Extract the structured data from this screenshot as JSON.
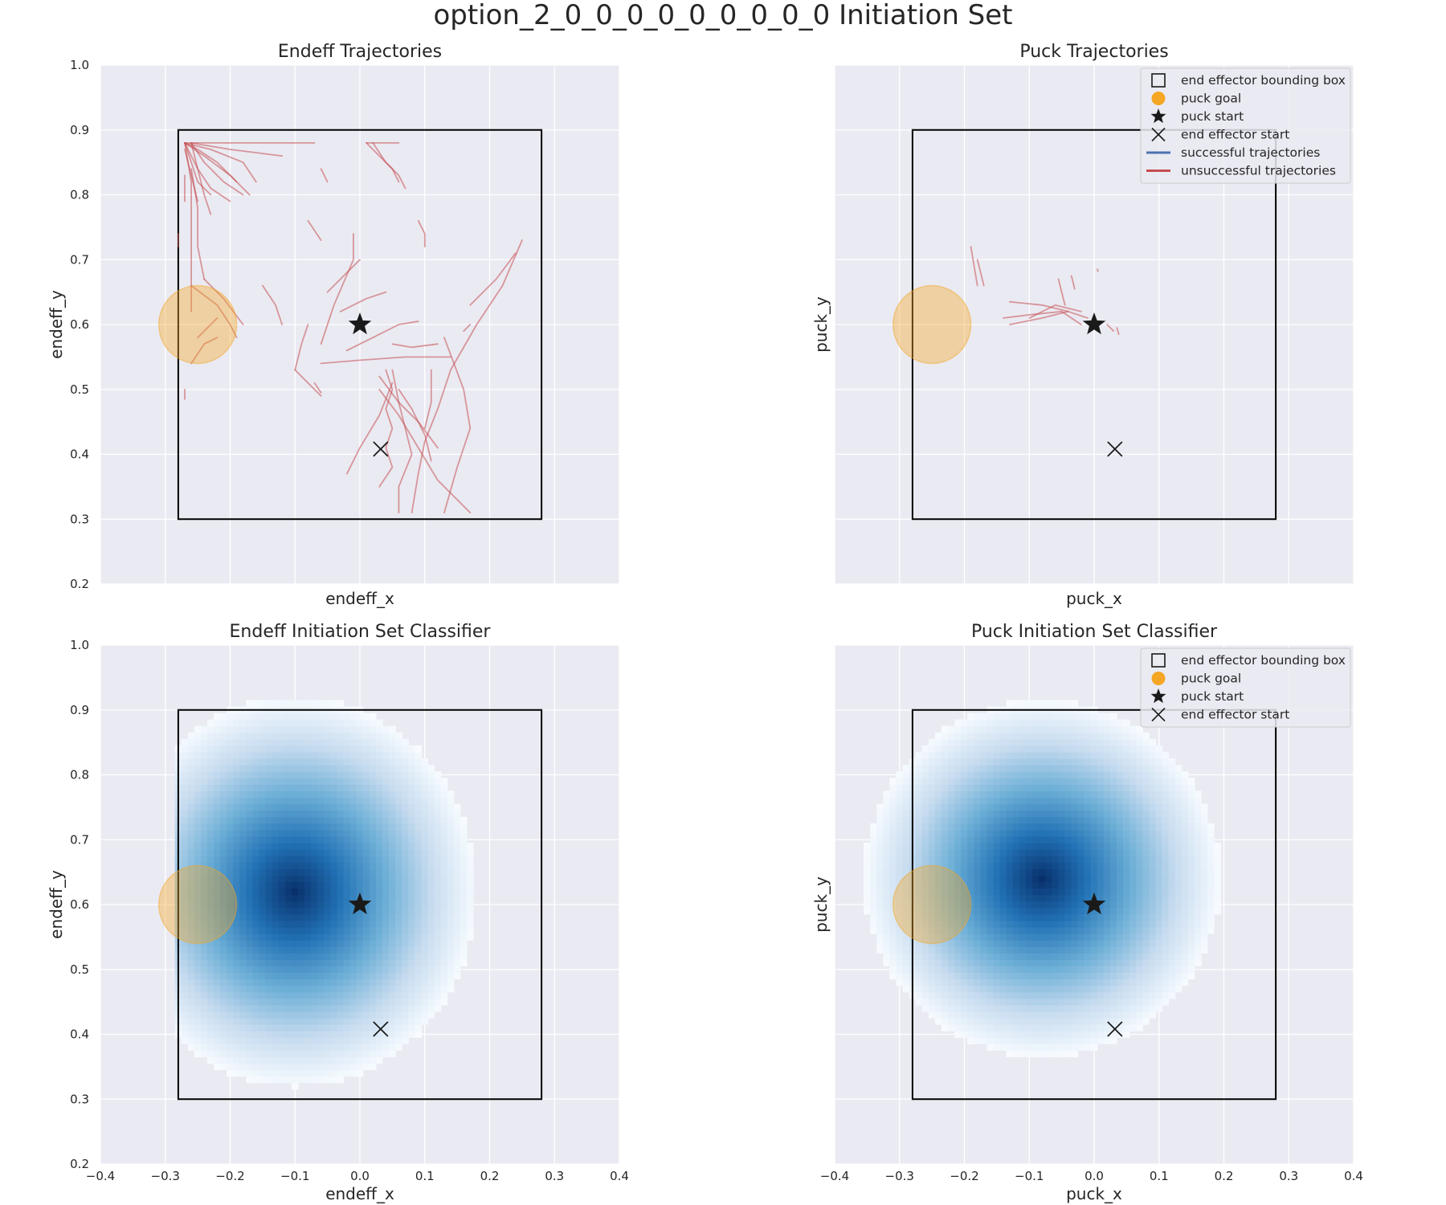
{
  "figure": {
    "title": "option_2_0_0_0_0_0_0_0_0_0 Initiation Set"
  },
  "colors": {
    "axes_bg": "#eaeaf2",
    "grid": "#ffffff",
    "bounding_box": "#000000",
    "puck_goal": "#f5a623",
    "successful": "#4c72b0",
    "unsuccessful": "#c44e52",
    "classifier_cmap": [
      "#f7fbff",
      "#c6dbef",
      "#6baed6",
      "#2171b5",
      "#08306b"
    ]
  },
  "legend_full": [
    {
      "marker": "square-icon",
      "label": "end effector bounding box"
    },
    {
      "marker": "circle-icon",
      "label": "puck goal"
    },
    {
      "marker": "star-icon",
      "label": "puck start"
    },
    {
      "marker": "x-icon",
      "label": "end effector start"
    },
    {
      "marker": "blue-line-icon",
      "label": "successful trajectories"
    },
    {
      "marker": "red-line-icon",
      "label": "unsuccessful trajectories"
    }
  ],
  "legend_short": [
    {
      "marker": "square-icon",
      "label": "end effector bounding box"
    },
    {
      "marker": "circle-icon",
      "label": "puck goal"
    },
    {
      "marker": "star-icon",
      "label": "puck start"
    },
    {
      "marker": "x-icon",
      "label": "end effector start"
    }
  ],
  "chart_data": [
    {
      "type": "line",
      "title": "Endeff Trajectories",
      "xlabel": "endeff_x",
      "ylabel": "endeff_y",
      "xlim": [
        -0.4,
        0.4
      ],
      "ylim": [
        0.2,
        1.0
      ],
      "xticks": [],
      "yticks": [
        "1.0",
        "0.9",
        "0.8",
        "0.7",
        "0.6",
        "0.5",
        "0.4",
        "0.3",
        "0.2"
      ],
      "grid": true,
      "legend": "none",
      "bounding_box": {
        "x": [
          -0.28,
          0.28
        ],
        "y": [
          0.3,
          0.9
        ]
      },
      "puck_goal": {
        "x": -0.25,
        "y": 0.6,
        "radius": 0.06
      },
      "puck_start": {
        "x": 0.0,
        "y": 0.6
      },
      "end_effector_start": {
        "x": 0.032,
        "y": 0.408
      },
      "successful_trajectories": [],
      "unsuccessful_trajectories": [
        [
          [
            -0.27,
            0.88
          ],
          [
            -0.25,
            0.84
          ],
          [
            -0.23,
            0.81
          ],
          [
            -0.2,
            0.79
          ]
        ],
        [
          [
            -0.27,
            0.88
          ],
          [
            -0.24,
            0.86
          ],
          [
            -0.2,
            0.83
          ],
          [
            -0.17,
            0.8
          ]
        ],
        [
          [
            -0.27,
            0.88
          ],
          [
            -0.26,
            0.85
          ],
          [
            -0.25,
            0.82
          ],
          [
            -0.23,
            0.8
          ]
        ],
        [
          [
            -0.27,
            0.88
          ],
          [
            -0.25,
            0.87
          ],
          [
            -0.22,
            0.85
          ],
          [
            -0.19,
            0.82
          ]
        ],
        [
          [
            -0.26,
            0.88
          ],
          [
            -0.24,
            0.85
          ],
          [
            -0.21,
            0.82
          ],
          [
            -0.18,
            0.8
          ]
        ],
        [
          [
            -0.26,
            0.88
          ],
          [
            -0.25,
            0.84
          ],
          [
            -0.24,
            0.8
          ],
          [
            -0.23,
            0.77
          ]
        ],
        [
          [
            -0.27,
            0.87
          ],
          [
            -0.26,
            0.83
          ],
          [
            -0.25,
            0.79
          ]
        ],
        [
          [
            -0.27,
            0.88
          ],
          [
            -0.23,
            0.87
          ],
          [
            -0.18,
            0.85
          ],
          [
            -0.16,
            0.82
          ]
        ],
        [
          [
            -0.27,
            0.88
          ],
          [
            -0.2,
            0.88
          ],
          [
            -0.1,
            0.88
          ],
          [
            -0.07,
            0.88
          ]
        ],
        [
          [
            -0.26,
            0.88
          ],
          [
            -0.2,
            0.87
          ],
          [
            -0.12,
            0.86
          ]
        ],
        [
          [
            -0.27,
            0.88
          ],
          [
            -0.26,
            0.82
          ],
          [
            -0.26,
            0.75
          ],
          [
            -0.26,
            0.68
          ],
          [
            -0.26,
            0.62
          ]
        ],
        [
          [
            -0.26,
            0.84
          ],
          [
            -0.25,
            0.78
          ],
          [
            -0.25,
            0.72
          ],
          [
            -0.24,
            0.67
          ]
        ],
        [
          [
            -0.27,
            0.83
          ],
          [
            -0.27,
            0.79
          ]
        ],
        [
          [
            -0.28,
            0.74
          ],
          [
            -0.28,
            0.72
          ]
        ],
        [
          [
            -0.26,
            0.66
          ],
          [
            -0.22,
            0.63
          ],
          [
            -0.2,
            0.6
          ],
          [
            -0.19,
            0.58
          ]
        ],
        [
          [
            -0.25,
            0.58
          ],
          [
            -0.24,
            0.59
          ],
          [
            -0.22,
            0.61
          ]
        ],
        [
          [
            -0.27,
            0.5
          ],
          [
            -0.27,
            0.485
          ]
        ],
        [
          [
            -0.26,
            0.54
          ],
          [
            -0.24,
            0.57
          ],
          [
            -0.22,
            0.58
          ]
        ],
        [
          [
            -0.24,
            0.67
          ],
          [
            -0.21,
            0.64
          ],
          [
            -0.18,
            0.6
          ]
        ],
        [
          [
            -0.15,
            0.66
          ],
          [
            -0.13,
            0.63
          ],
          [
            -0.12,
            0.6
          ]
        ],
        [
          [
            -0.08,
            0.76
          ],
          [
            -0.06,
            0.73
          ]
        ],
        [
          [
            -0.06,
            0.84
          ],
          [
            -0.05,
            0.82
          ]
        ],
        [
          [
            0.01,
            0.88
          ],
          [
            0.04,
            0.88
          ],
          [
            0.06,
            0.88
          ]
        ],
        [
          [
            0.01,
            0.88
          ],
          [
            0.03,
            0.86
          ],
          [
            0.05,
            0.84
          ],
          [
            0.06,
            0.82
          ]
        ],
        [
          [
            0.02,
            0.88
          ],
          [
            0.04,
            0.85
          ],
          [
            0.06,
            0.83
          ],
          [
            0.07,
            0.81
          ]
        ],
        [
          [
            0.09,
            0.76
          ],
          [
            0.1,
            0.74
          ],
          [
            0.1,
            0.72
          ]
        ],
        [
          [
            -0.06,
            0.57
          ],
          [
            -0.04,
            0.63
          ],
          [
            -0.01,
            0.7
          ],
          [
            -0.01,
            0.74
          ]
        ],
        [
          [
            -0.05,
            0.65
          ],
          [
            -0.02,
            0.68
          ],
          [
            0.0,
            0.7
          ]
        ],
        [
          [
            -0.03,
            0.62
          ],
          [
            0.01,
            0.64
          ],
          [
            0.04,
            0.65
          ]
        ],
        [
          [
            -0.1,
            0.53
          ],
          [
            -0.09,
            0.57
          ],
          [
            -0.08,
            0.6
          ]
        ],
        [
          [
            -0.1,
            0.53
          ],
          [
            -0.08,
            0.51
          ],
          [
            -0.06,
            0.49
          ]
        ],
        [
          [
            -0.07,
            0.51
          ],
          [
            -0.06,
            0.495
          ]
        ],
        [
          [
            -0.06,
            0.54
          ],
          [
            0.0,
            0.545
          ],
          [
            0.07,
            0.55
          ],
          [
            0.14,
            0.55
          ]
        ],
        [
          [
            -0.02,
            0.56
          ],
          [
            0.02,
            0.58
          ],
          [
            0.06,
            0.6
          ],
          [
            0.09,
            0.605
          ]
        ],
        [
          [
            0.05,
            0.57
          ],
          [
            0.08,
            0.565
          ],
          [
            0.12,
            0.57
          ]
        ],
        [
          [
            0.17,
            0.6
          ],
          [
            0.16,
            0.59
          ]
        ],
        [
          [
            0.17,
            0.63
          ],
          [
            0.21,
            0.67
          ],
          [
            0.24,
            0.71
          ]
        ],
        [
          [
            0.25,
            0.73
          ],
          [
            0.22,
            0.66
          ],
          [
            0.18,
            0.6
          ],
          [
            0.14,
            0.53
          ],
          [
            0.12,
            0.47
          ],
          [
            0.1,
            0.42
          ],
          [
            0.09,
            0.37
          ],
          [
            0.08,
            0.31
          ]
        ],
        [
          [
            0.13,
            0.58
          ],
          [
            0.16,
            0.5
          ],
          [
            0.17,
            0.44
          ],
          [
            0.15,
            0.38
          ],
          [
            0.13,
            0.31
          ]
        ],
        [
          [
            0.04,
            0.53
          ],
          [
            0.05,
            0.5
          ],
          [
            0.04,
            0.47
          ],
          [
            0.05,
            0.44
          ],
          [
            0.04,
            0.41
          ],
          [
            0.05,
            0.38
          ],
          [
            0.03,
            0.35
          ]
        ],
        [
          [
            0.05,
            0.53
          ],
          [
            0.06,
            0.48
          ],
          [
            0.07,
            0.44
          ],
          [
            0.08,
            0.4
          ],
          [
            0.06,
            0.35
          ],
          [
            0.06,
            0.31
          ]
        ],
        [
          [
            0.03,
            0.52
          ],
          [
            0.06,
            0.48
          ],
          [
            0.09,
            0.45
          ],
          [
            0.12,
            0.41
          ]
        ],
        [
          [
            0.11,
            0.53
          ],
          [
            0.11,
            0.48
          ],
          [
            0.1,
            0.44
          ]
        ],
        [
          [
            0.03,
            0.5
          ],
          [
            0.06,
            0.46
          ],
          [
            0.09,
            0.41
          ],
          [
            0.12,
            0.36
          ],
          [
            0.17,
            0.31
          ]
        ],
        [
          [
            0.05,
            0.51
          ],
          [
            0.03,
            0.46
          ],
          [
            0.0,
            0.41
          ],
          [
            -0.02,
            0.37
          ]
        ],
        [
          [
            0.06,
            0.5
          ],
          [
            0.08,
            0.47
          ],
          [
            0.1,
            0.43
          ],
          [
            0.11,
            0.39
          ]
        ]
      ]
    },
    {
      "type": "line",
      "title": "Puck Trajectories",
      "xlabel": "puck_x",
      "ylabel": "puck_y",
      "xlim": [
        -0.4,
        0.4
      ],
      "ylim": [
        0.2,
        1.0
      ],
      "xticks": [],
      "yticks": [],
      "grid": true,
      "legend": "upper right",
      "bounding_box": {
        "x": [
          -0.28,
          0.28
        ],
        "y": [
          0.3,
          0.9
        ]
      },
      "puck_goal": {
        "x": -0.25,
        "y": 0.6,
        "radius": 0.06
      },
      "puck_start": {
        "x": 0.0,
        "y": 0.6
      },
      "end_effector_start": {
        "x": 0.032,
        "y": 0.408
      },
      "successful_trajectories": [],
      "unsuccessful_trajectories": [
        [
          [
            -0.19,
            0.72
          ],
          [
            -0.185,
            0.69
          ],
          [
            -0.18,
            0.66
          ]
        ],
        [
          [
            -0.18,
            0.7
          ],
          [
            -0.175,
            0.68
          ],
          [
            -0.17,
            0.66
          ]
        ],
        [
          [
            -0.14,
            0.61
          ],
          [
            -0.1,
            0.615
          ],
          [
            -0.05,
            0.62
          ],
          [
            -0.02,
            0.6
          ]
        ],
        [
          [
            -0.13,
            0.635
          ],
          [
            -0.08,
            0.63
          ],
          [
            -0.04,
            0.62
          ]
        ],
        [
          [
            -0.13,
            0.6
          ],
          [
            -0.08,
            0.61
          ],
          [
            -0.04,
            0.62
          ],
          [
            -0.01,
            0.61
          ]
        ],
        [
          [
            -0.1,
            0.61
          ],
          [
            -0.06,
            0.63
          ],
          [
            -0.02,
            0.62
          ]
        ],
        [
          [
            -0.055,
            0.67
          ],
          [
            -0.05,
            0.65
          ],
          [
            -0.045,
            0.63
          ]
        ],
        [
          [
            -0.035,
            0.675
          ],
          [
            -0.03,
            0.655
          ]
        ],
        [
          [
            0.02,
            0.6
          ],
          [
            0.03,
            0.59
          ]
        ],
        [
          [
            0.035,
            0.595
          ],
          [
            0.038,
            0.585
          ]
        ],
        [
          [
            0.005,
            0.685
          ],
          [
            0.006,
            0.682
          ]
        ]
      ]
    },
    {
      "type": "heatmap",
      "title": "Endeff Initiation Set Classifier",
      "xlabel": "endeff_x",
      "ylabel": "endeff_y",
      "xlim": [
        -0.4,
        0.4
      ],
      "ylim": [
        0.2,
        1.0
      ],
      "xticks": [
        "−0.4",
        "−0.3",
        "−0.2",
        "−0.1",
        "0.0",
        "0.1",
        "0.2",
        "0.3",
        "0.4"
      ],
      "yticks": [
        "1.0",
        "0.9",
        "0.8",
        "0.7",
        "0.6",
        "0.5",
        "0.4",
        "0.3",
        "0.2"
      ],
      "grid": true,
      "legend": "none",
      "bounding_box": {
        "x": [
          -0.28,
          0.28
        ],
        "y": [
          0.3,
          0.9
        ]
      },
      "puck_goal": {
        "x": -0.25,
        "y": 0.6,
        "radius": 0.06
      },
      "puck_start": {
        "x": 0.0,
        "y": 0.6
      },
      "end_effector_start": {
        "x": 0.032,
        "y": 0.408
      },
      "classifier": {
        "center_x": -0.1,
        "center_y": 0.62,
        "radius_x": 0.28,
        "radius_y": 0.3,
        "clip_x_min": -0.285,
        "grid_step": 0.01
      }
    },
    {
      "type": "heatmap",
      "title": "Puck Initiation Set Classifier",
      "xlabel": "puck_x",
      "ylabel": "puck_y",
      "xlim": [
        -0.4,
        0.4
      ],
      "ylim": [
        0.2,
        1.0
      ],
      "xticks": [
        "−0.4",
        "−0.3",
        "−0.2",
        "−0.1",
        "0.0",
        "0.1",
        "0.2",
        "0.3",
        "0.4"
      ],
      "yticks": [],
      "grid": true,
      "legend": "upper right",
      "bounding_box": {
        "x": [
          -0.28,
          0.28
        ],
        "y": [
          0.3,
          0.9
        ]
      },
      "puck_goal": {
        "x": -0.25,
        "y": 0.6,
        "radius": 0.06
      },
      "puck_start": {
        "x": 0.0,
        "y": 0.6
      },
      "end_effector_start": {
        "x": 0.032,
        "y": 0.408
      },
      "classifier": {
        "center_x": -0.08,
        "center_y": 0.64,
        "radius_x": 0.275,
        "radius_y": 0.275,
        "clip_x_min": -0.4,
        "grid_step": 0.01
      }
    }
  ]
}
